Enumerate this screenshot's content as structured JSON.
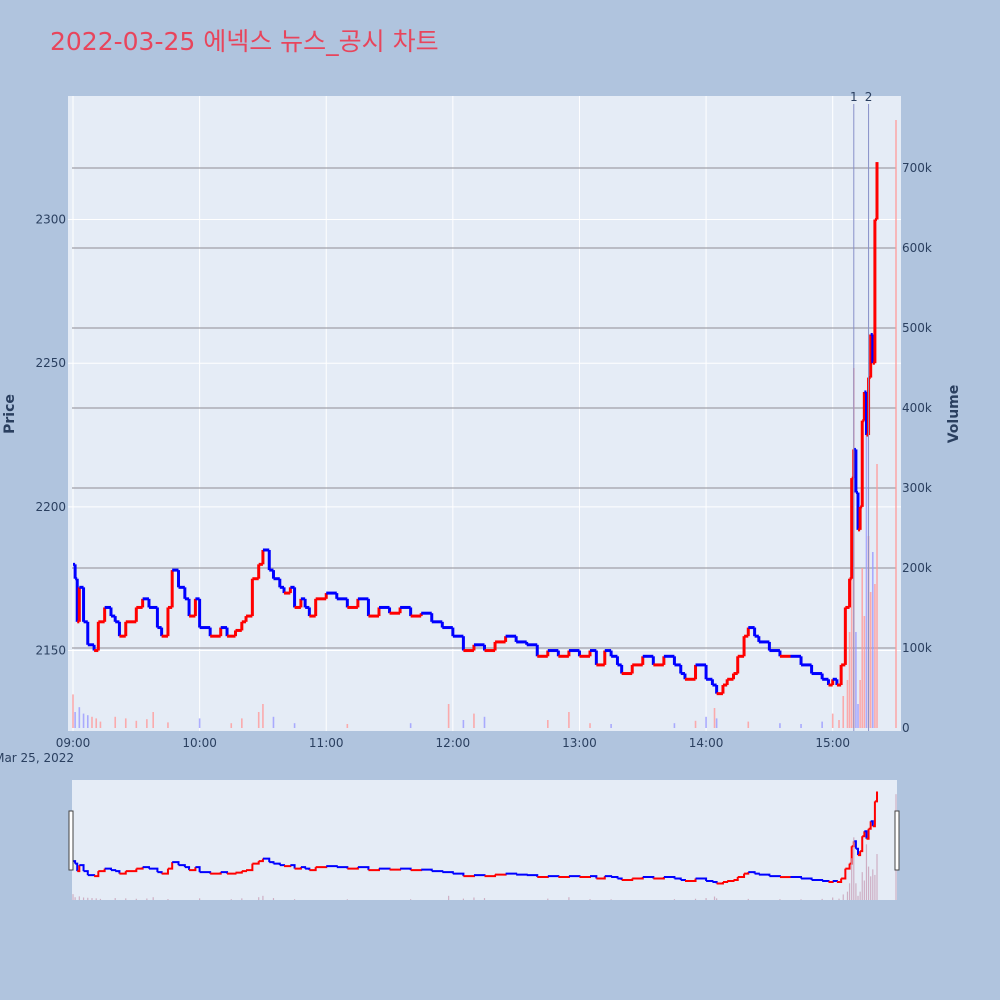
{
  "title": "2022-03-25 에넥스 뉴스_공시 차트",
  "colors": {
    "background": "#b0c4de",
    "plot_bg": "#e5ecf6",
    "up": "#ff0000",
    "down": "#0000ff",
    "title": "#e8455c",
    "text": "#2a3f5f",
    "hline": "#a0a0a8",
    "marker": "#8890c8"
  },
  "chart_data": {
    "type": "candlestick",
    "xlabel": "",
    "ylabel": "Price",
    "y2label": "Volume",
    "date_label": "Mar 25, 2022",
    "x_ticks": [
      "09:00",
      "10:00",
      "11:00",
      "12:00",
      "13:00",
      "14:00",
      "15:00"
    ],
    "y_ticks": [
      2150,
      2200,
      2250,
      2300
    ],
    "y2_ticks": [
      "0",
      "100k",
      "200k",
      "300k",
      "400k",
      "500k",
      "600k",
      "700k"
    ],
    "y_range": [
      2122,
      2343
    ],
    "y2_range": [
      0,
      790000
    ],
    "x_range": [
      "09:00",
      "15:30"
    ],
    "grid": true,
    "volume_gridlines": [
      100000,
      200000,
      300000,
      400000,
      500000,
      600000,
      700000
    ],
    "news_markers": [
      {
        "label": "1",
        "time": "15:10"
      },
      {
        "label": "2",
        "time": "15:17"
      }
    ],
    "rangeslider": true,
    "price_path": [
      [
        "09:00",
        2180
      ],
      [
        "09:01",
        2175
      ],
      [
        "09:02",
        2160
      ],
      [
        "09:03",
        2172
      ],
      [
        "09:05",
        2160
      ],
      [
        "09:07",
        2152
      ],
      [
        "09:10",
        2150
      ],
      [
        "09:12",
        2160
      ],
      [
        "09:15",
        2165
      ],
      [
        "09:18",
        2162
      ],
      [
        "09:20",
        2160
      ],
      [
        "09:22",
        2155
      ],
      [
        "09:25",
        2160
      ],
      [
        "09:30",
        2165
      ],
      [
        "09:33",
        2168
      ],
      [
        "09:36",
        2165
      ],
      [
        "09:40",
        2158
      ],
      [
        "09:42",
        2155
      ],
      [
        "09:45",
        2165
      ],
      [
        "09:47",
        2178
      ],
      [
        "09:50",
        2172
      ],
      [
        "09:53",
        2168
      ],
      [
        "09:55",
        2162
      ],
      [
        "09:58",
        2168
      ],
      [
        "10:00",
        2158
      ],
      [
        "10:05",
        2155
      ],
      [
        "10:10",
        2158
      ],
      [
        "10:13",
        2155
      ],
      [
        "10:17",
        2157
      ],
      [
        "10:20",
        2160
      ],
      [
        "10:22",
        2162
      ],
      [
        "10:25",
        2175
      ],
      [
        "10:28",
        2180
      ],
      [
        "10:30",
        2185
      ],
      [
        "10:33",
        2178
      ],
      [
        "10:35",
        2175
      ],
      [
        "10:38",
        2172
      ],
      [
        "10:40",
        2170
      ],
      [
        "10:43",
        2172
      ],
      [
        "10:45",
        2165
      ],
      [
        "10:48",
        2168
      ],
      [
        "10:50",
        2165
      ],
      [
        "10:52",
        2162
      ],
      [
        "10:55",
        2168
      ],
      [
        "11:00",
        2170
      ],
      [
        "11:05",
        2168
      ],
      [
        "11:10",
        2165
      ],
      [
        "11:15",
        2168
      ],
      [
        "11:20",
        2162
      ],
      [
        "11:25",
        2165
      ],
      [
        "11:30",
        2163
      ],
      [
        "11:35",
        2165
      ],
      [
        "11:40",
        2162
      ],
      [
        "11:45",
        2163
      ],
      [
        "11:50",
        2160
      ],
      [
        "11:55",
        2158
      ],
      [
        "12:00",
        2155
      ],
      [
        "12:05",
        2150
      ],
      [
        "12:10",
        2152
      ],
      [
        "12:15",
        2150
      ],
      [
        "12:20",
        2153
      ],
      [
        "12:25",
        2155
      ],
      [
        "12:30",
        2153
      ],
      [
        "12:35",
        2152
      ],
      [
        "12:40",
        2148
      ],
      [
        "12:45",
        2150
      ],
      [
        "12:50",
        2148
      ],
      [
        "12:55",
        2150
      ],
      [
        "13:00",
        2148
      ],
      [
        "13:05",
        2150
      ],
      [
        "13:08",
        2145
      ],
      [
        "13:12",
        2150
      ],
      [
        "13:15",
        2148
      ],
      [
        "13:18",
        2145
      ],
      [
        "13:20",
        2142
      ],
      [
        "13:25",
        2145
      ],
      [
        "13:30",
        2148
      ],
      [
        "13:35",
        2145
      ],
      [
        "13:40",
        2148
      ],
      [
        "13:45",
        2145
      ],
      [
        "13:48",
        2142
      ],
      [
        "13:50",
        2140
      ],
      [
        "13:55",
        2145
      ],
      [
        "14:00",
        2140
      ],
      [
        "14:03",
        2138
      ],
      [
        "14:05",
        2135
      ],
      [
        "14:08",
        2138
      ],
      [
        "14:10",
        2140
      ],
      [
        "14:13",
        2142
      ],
      [
        "14:15",
        2148
      ],
      [
        "14:18",
        2155
      ],
      [
        "14:20",
        2158
      ],
      [
        "14:23",
        2155
      ],
      [
        "14:25",
        2153
      ],
      [
        "14:30",
        2150
      ],
      [
        "14:35",
        2148
      ],
      [
        "14:40",
        2148
      ],
      [
        "14:45",
        2145
      ],
      [
        "14:50",
        2142
      ],
      [
        "14:55",
        2140
      ],
      [
        "14:58",
        2138
      ],
      [
        "15:00",
        2140
      ],
      [
        "15:02",
        2138
      ],
      [
        "15:04",
        2145
      ],
      [
        "15:06",
        2165
      ],
      [
        "15:08",
        2175
      ],
      [
        "15:09",
        2210
      ],
      [
        "15:10",
        2220
      ],
      [
        "15:11",
        2205
      ],
      [
        "15:12",
        2192
      ],
      [
        "15:13",
        2200
      ],
      [
        "15:14",
        2230
      ],
      [
        "15:15",
        2240
      ],
      [
        "15:16",
        2225
      ],
      [
        "15:17",
        2245
      ],
      [
        "15:18",
        2260
      ],
      [
        "15:19",
        2250
      ],
      [
        "15:20",
        2300
      ],
      [
        "15:21",
        2320
      ]
    ],
    "volume_bars": [
      [
        "09:00",
        42000
      ],
      [
        "09:01",
        20000
      ],
      [
        "09:03",
        26000
      ],
      [
        "09:05",
        18000
      ],
      [
        "09:07",
        16000
      ],
      [
        "09:09",
        14000
      ],
      [
        "09:11",
        12000
      ],
      [
        "09:13",
        8000
      ],
      [
        "09:20",
        14000
      ],
      [
        "09:25",
        12000
      ],
      [
        "09:30",
        9000
      ],
      [
        "09:35",
        11000
      ],
      [
        "09:38",
        20000
      ],
      [
        "09:45",
        7000
      ],
      [
        "10:00",
        12000
      ],
      [
        "10:15",
        6000
      ],
      [
        "10:20",
        12000
      ],
      [
        "10:28",
        20000
      ],
      [
        "10:30",
        30000
      ],
      [
        "10:35",
        14000
      ],
      [
        "10:45",
        6000
      ],
      [
        "11:10",
        5000
      ],
      [
        "11:40",
        6000
      ],
      [
        "11:58",
        30000
      ],
      [
        "12:05",
        10000
      ],
      [
        "12:10",
        18000
      ],
      [
        "12:15",
        14000
      ],
      [
        "12:45",
        10000
      ],
      [
        "12:55",
        20000
      ],
      [
        "13:05",
        6000
      ],
      [
        "13:15",
        5000
      ],
      [
        "13:45",
        6000
      ],
      [
        "13:55",
        9000
      ],
      [
        "14:00",
        14000
      ],
      [
        "14:04",
        25000
      ],
      [
        "14:05",
        12000
      ],
      [
        "14:20",
        8000
      ],
      [
        "14:35",
        6000
      ],
      [
        "14:45",
        5000
      ],
      [
        "14:55",
        8000
      ],
      [
        "15:00",
        18000
      ],
      [
        "15:03",
        10000
      ],
      [
        "15:05",
        40000
      ],
      [
        "15:07",
        60000
      ],
      [
        "15:08",
        120000
      ],
      [
        "15:09",
        300000
      ],
      [
        "15:10",
        450000
      ],
      [
        "15:11",
        120000
      ],
      [
        "15:12",
        30000
      ],
      [
        "15:13",
        60000
      ],
      [
        "15:14",
        200000
      ],
      [
        "15:15",
        140000
      ],
      [
        "15:16",
        400000
      ],
      [
        "15:17",
        240000
      ],
      [
        "15:18",
        170000
      ],
      [
        "15:19",
        220000
      ],
      [
        "15:20",
        180000
      ],
      [
        "15:21",
        330000
      ],
      [
        "15:30",
        760000
      ]
    ]
  }
}
